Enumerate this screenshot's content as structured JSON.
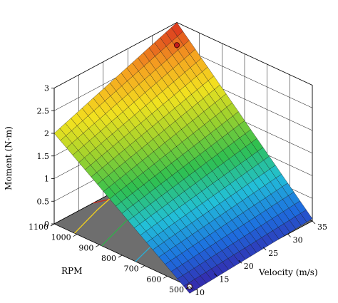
{
  "chart_data": {
    "type": "surface",
    "title": "",
    "zlabel": "Moment (N-m)",
    "ylabel": "RPM",
    "xlabel": "Velocity (m/s)",
    "z_ticks": [
      "3",
      "2.5",
      "2",
      "1.5",
      "1",
      "0.5",
      "0"
    ],
    "rpm_ticks": [
      "1100",
      "1000",
      "900",
      "800",
      "700",
      "600",
      "500"
    ],
    "velocity_ticks": [
      "10",
      "15",
      "20",
      "25",
      "30",
      "35"
    ],
    "zlim": [
      0,
      3
    ],
    "rpm_range": [
      500,
      1100
    ],
    "velocity_range": [
      10,
      35
    ],
    "surface_corners": [
      {
        "velocity": 10,
        "rpm": 1100,
        "moment": 2.0
      },
      {
        "velocity": 35,
        "rpm": 1100,
        "moment": 3.0
      },
      {
        "velocity": 10,
        "rpm": 500,
        "moment": -0.15
      },
      {
        "velocity": 35,
        "rpm": 500,
        "moment": 0.05
      }
    ],
    "design_points": [
      {
        "velocity": 35,
        "rpm": 1100,
        "moment": 2.5
      },
      {
        "velocity": 10,
        "rpm": 500,
        "moment": 0.0
      }
    ],
    "contour_colors": [
      "#cc2a1a",
      "#f5d21b",
      "#2fb24b",
      "#27b0d8",
      "#3d52d0"
    ],
    "colormap": [
      "#3a18a0",
      "#1d6fe0",
      "#22c0d8",
      "#2fc050",
      "#9ad12e",
      "#f2e21f",
      "#f5a020",
      "#d8281e"
    ],
    "grid": true
  }
}
